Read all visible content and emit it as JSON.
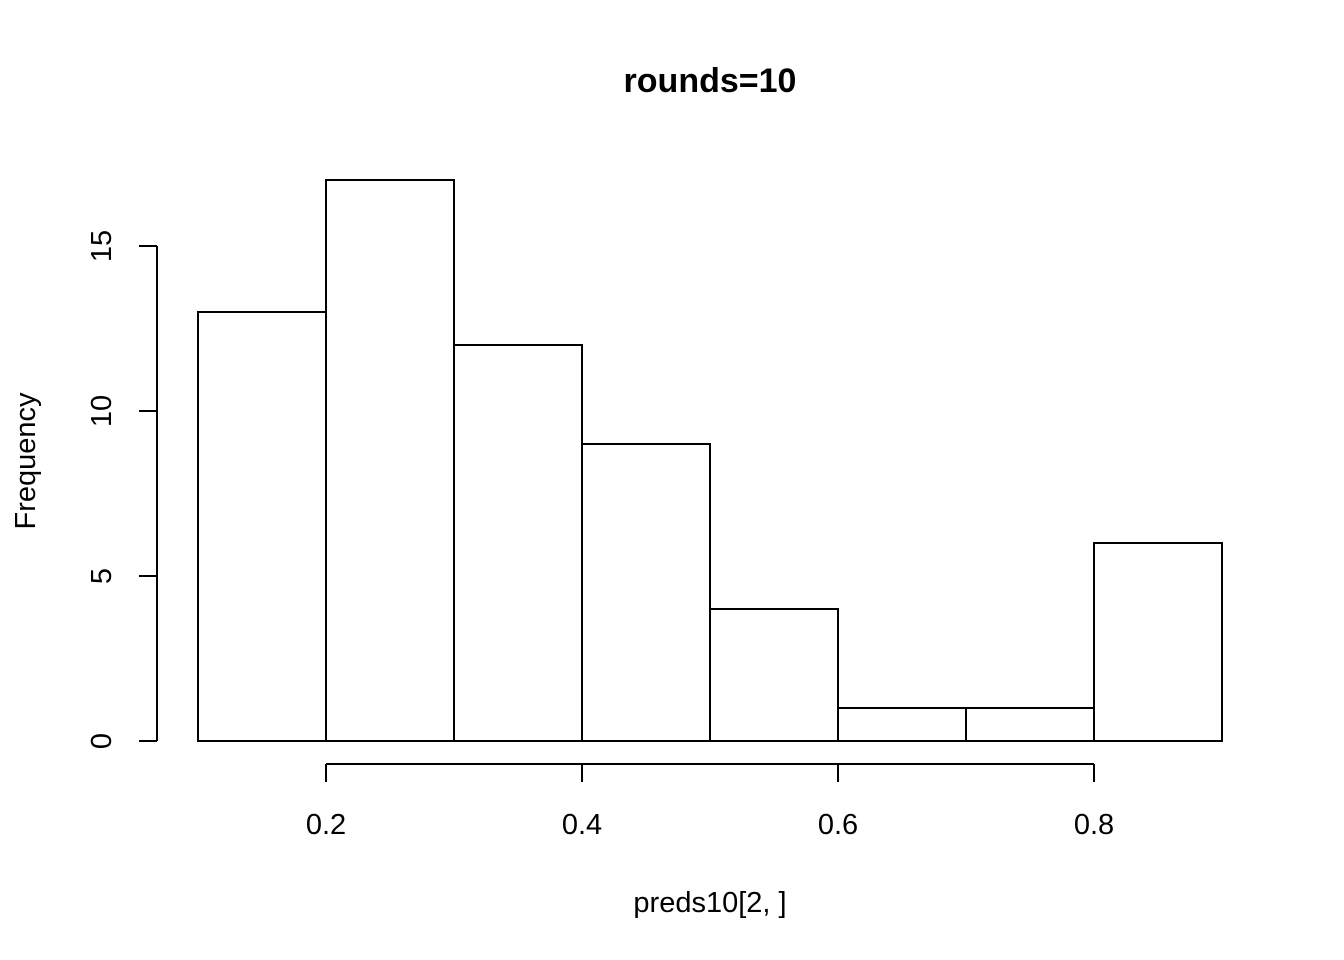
{
  "chart_data": {
    "type": "bar",
    "title": "rounds=10",
    "xlabel": "preds10[2, ]",
    "ylabel": "Frequency",
    "bins": [
      {
        "x0": 0.1,
        "x1": 0.2,
        "value": 13
      },
      {
        "x0": 0.2,
        "x1": 0.3,
        "value": 17
      },
      {
        "x0": 0.3,
        "x1": 0.4,
        "value": 12
      },
      {
        "x0": 0.4,
        "x1": 0.5,
        "value": 9
      },
      {
        "x0": 0.5,
        "x1": 0.6,
        "value": 4
      },
      {
        "x0": 0.6,
        "x1": 0.7,
        "value": 1
      },
      {
        "x0": 0.7,
        "x1": 0.8,
        "value": 1
      },
      {
        "x0": 0.8,
        "x1": 0.9,
        "value": 6
      }
    ],
    "xticks": [
      {
        "value": 0.2,
        "label": "0.2"
      },
      {
        "value": 0.4,
        "label": "0.4"
      },
      {
        "value": 0.6,
        "label": "0.6"
      },
      {
        "value": 0.8,
        "label": "0.8"
      }
    ],
    "yticks": [
      {
        "value": 0,
        "label": "0"
      },
      {
        "value": 5,
        "label": "5"
      },
      {
        "value": 10,
        "label": "10"
      },
      {
        "value": 15,
        "label": "15"
      }
    ],
    "grid": false,
    "fill_color": "#ffffff",
    "stroke_color": "#000000"
  }
}
